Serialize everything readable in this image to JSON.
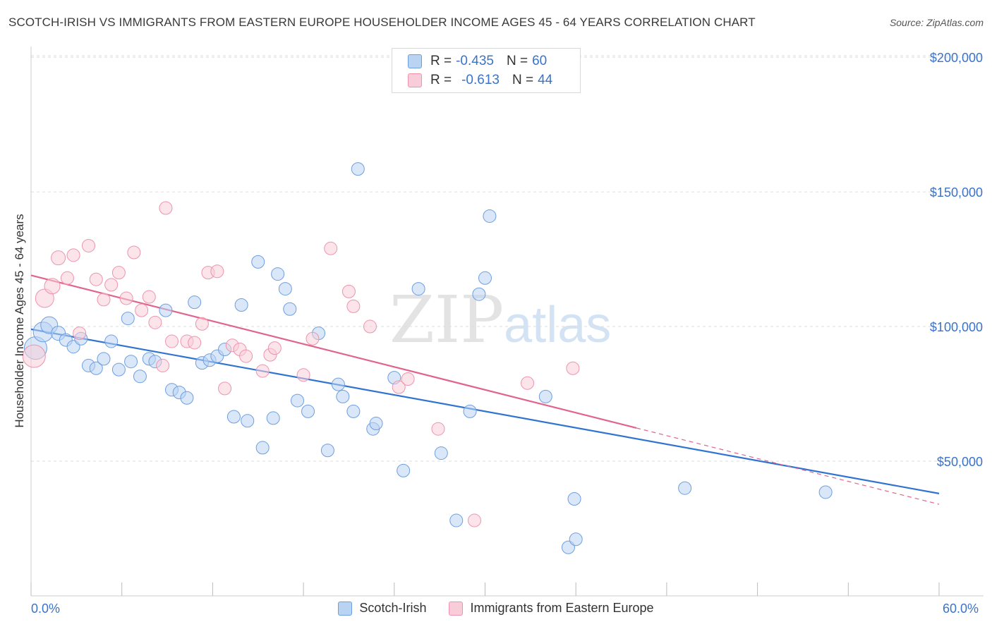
{
  "title": "SCOTCH-IRISH VS IMMIGRANTS FROM EASTERN EUROPE HOUSEHOLDER INCOME AGES 45 - 64 YEARS CORRELATION CHART",
  "source": "Source: ZipAtlas.com",
  "watermark": {
    "zip": "ZIP",
    "atlas": "atlas"
  },
  "legend_top": [
    {
      "r_label": "R =",
      "r_value": "-0.435",
      "n_label": "N =",
      "n_value": "60"
    },
    {
      "r_label": "R =",
      "r_value": "-0.613",
      "n_label": "N =",
      "n_value": "44"
    }
  ],
  "colors": {
    "blue_fill": "#b9d3f2",
    "blue_stroke": "#6d9fe0",
    "blue_line": "#2f74d0",
    "pink_fill": "#f8cdd9",
    "pink_stroke": "#ee93ad",
    "pink_line": "#e0648d",
    "axis_label": "#3a74c9",
    "grid": "#dddddd"
  },
  "chart_data": {
    "type": "scatter",
    "title": "SCOTCH-IRISH VS IMMIGRANTS FROM EASTERN EUROPE HOUSEHOLDER INCOME AGES 45 - 64 YEARS CORRELATION CHART",
    "xlabel": "",
    "ylabel": "Householder Income Ages 45 - 64 years",
    "xlim": [
      0,
      60
    ],
    "ylim": [
      0,
      205000
    ],
    "x_tick_labels": [
      "0.0%",
      "60.0%"
    ],
    "y_ticks": [
      50000,
      100000,
      150000,
      200000
    ],
    "y_tick_labels": [
      "$50,000",
      "$100,000",
      "$150,000",
      "$200,000"
    ],
    "grid": true,
    "legend_position": "bottom",
    "series": [
      {
        "name": "Scotch-Irish",
        "color": "#6d9fe0",
        "r": "-0.435",
        "n": "60",
        "trend": {
          "x": [
            0,
            60
          ],
          "y": [
            99000,
            38000
          ],
          "dash_from": null
        },
        "points": [
          [
            0.3,
            92000,
            16
          ],
          [
            0.8,
            98000,
            14
          ],
          [
            1.2,
            100500,
            12
          ],
          [
            1.8,
            97500,
            10
          ],
          [
            2.3,
            95000,
            9
          ],
          [
            2.8,
            92500,
            9
          ],
          [
            3.3,
            95500,
            9
          ],
          [
            3.8,
            85500,
            9
          ],
          [
            4.3,
            84500,
            9
          ],
          [
            4.8,
            88000,
            9
          ],
          [
            5.3,
            94500,
            9
          ],
          [
            5.8,
            84000,
            9
          ],
          [
            6.6,
            87000,
            9
          ],
          [
            6.4,
            103000,
            9
          ],
          [
            7.2,
            81500,
            9
          ],
          [
            7.8,
            88000,
            9
          ],
          [
            8.2,
            87000,
            9
          ],
          [
            8.9,
            106000,
            9
          ],
          [
            9.3,
            76500,
            9
          ],
          [
            9.8,
            75500,
            9
          ],
          [
            10.3,
            73500,
            9
          ],
          [
            10.8,
            109000,
            9
          ],
          [
            11.3,
            86500,
            9
          ],
          [
            11.8,
            87500,
            9
          ],
          [
            12.3,
            89000,
            9
          ],
          [
            12.8,
            91500,
            9
          ],
          [
            13.4,
            66500,
            9
          ],
          [
            13.9,
            108000,
            9
          ],
          [
            14.3,
            65000,
            9
          ],
          [
            15.0,
            124000,
            9
          ],
          [
            15.3,
            55000,
            9
          ],
          [
            16.0,
            66000,
            9
          ],
          [
            16.3,
            119500,
            9
          ],
          [
            16.8,
            114000,
            9
          ],
          [
            17.1,
            106500,
            9
          ],
          [
            17.6,
            72500,
            9
          ],
          [
            18.3,
            68500,
            9
          ],
          [
            19.0,
            97500,
            9
          ],
          [
            19.6,
            54000,
            9
          ],
          [
            20.3,
            78500,
            9
          ],
          [
            20.6,
            74000,
            9
          ],
          [
            21.3,
            68500,
            9
          ],
          [
            21.6,
            158500,
            9
          ],
          [
            22.6,
            62000,
            9
          ],
          [
            22.8,
            64000,
            9
          ],
          [
            24.0,
            81000,
            9
          ],
          [
            24.6,
            46500,
            9
          ],
          [
            25.6,
            114000,
            9
          ],
          [
            27.1,
            53000,
            9
          ],
          [
            28.1,
            28000,
            9
          ],
          [
            29.0,
            68500,
            9
          ],
          [
            29.6,
            112000,
            9
          ],
          [
            30.0,
            118000,
            9
          ],
          [
            30.3,
            141000,
            9
          ],
          [
            34.0,
            74000,
            9
          ],
          [
            35.5,
            18000,
            9
          ],
          [
            35.9,
            36000,
            9
          ],
          [
            36.0,
            21000,
            9
          ],
          [
            43.2,
            40000,
            9
          ],
          [
            52.5,
            38500,
            9
          ]
        ]
      },
      {
        "name": "Immigrants from Eastern Europe",
        "color": "#ee93ad",
        "r": "-0.613",
        "n": "44",
        "trend": {
          "x": [
            0,
            60
          ],
          "y": [
            119000,
            34000
          ],
          "dash_from": 40
        },
        "points": [
          [
            0.2,
            89000,
            16
          ],
          [
            0.9,
            110500,
            13
          ],
          [
            1.4,
            115000,
            11
          ],
          [
            1.8,
            125500,
            10
          ],
          [
            2.4,
            118000,
            9
          ],
          [
            2.8,
            126500,
            9
          ],
          [
            3.2,
            97500,
            9
          ],
          [
            3.8,
            130000,
            9
          ],
          [
            4.3,
            117500,
            9
          ],
          [
            4.8,
            110000,
            9
          ],
          [
            5.3,
            115500,
            9
          ],
          [
            5.8,
            120000,
            9
          ],
          [
            6.3,
            110500,
            9
          ],
          [
            6.8,
            127500,
            9
          ],
          [
            7.3,
            106000,
            9
          ],
          [
            7.8,
            111000,
            9
          ],
          [
            8.2,
            101500,
            9
          ],
          [
            8.7,
            85500,
            9
          ],
          [
            8.9,
            144000,
            9
          ],
          [
            9.3,
            94500,
            9
          ],
          [
            10.3,
            94500,
            9
          ],
          [
            10.8,
            94000,
            9
          ],
          [
            11.3,
            101000,
            9
          ],
          [
            11.7,
            120000,
            9
          ],
          [
            12.3,
            120500,
            9
          ],
          [
            12.8,
            77000,
            9
          ],
          [
            13.3,
            93000,
            9
          ],
          [
            13.8,
            91500,
            9
          ],
          [
            14.2,
            89000,
            9
          ],
          [
            15.3,
            83500,
            9
          ],
          [
            15.8,
            89500,
            9
          ],
          [
            16.1,
            92000,
            9
          ],
          [
            18.0,
            82000,
            9
          ],
          [
            18.6,
            95500,
            9
          ],
          [
            19.8,
            129000,
            9
          ],
          [
            21.0,
            113000,
            9
          ],
          [
            21.3,
            107500,
            9
          ],
          [
            22.4,
            100000,
            9
          ],
          [
            24.3,
            77500,
            9
          ],
          [
            24.9,
            80500,
            9
          ],
          [
            26.9,
            62000,
            9
          ],
          [
            29.3,
            28000,
            9
          ],
          [
            32.8,
            79000,
            9
          ],
          [
            35.8,
            84500,
            9
          ]
        ]
      }
    ]
  }
}
